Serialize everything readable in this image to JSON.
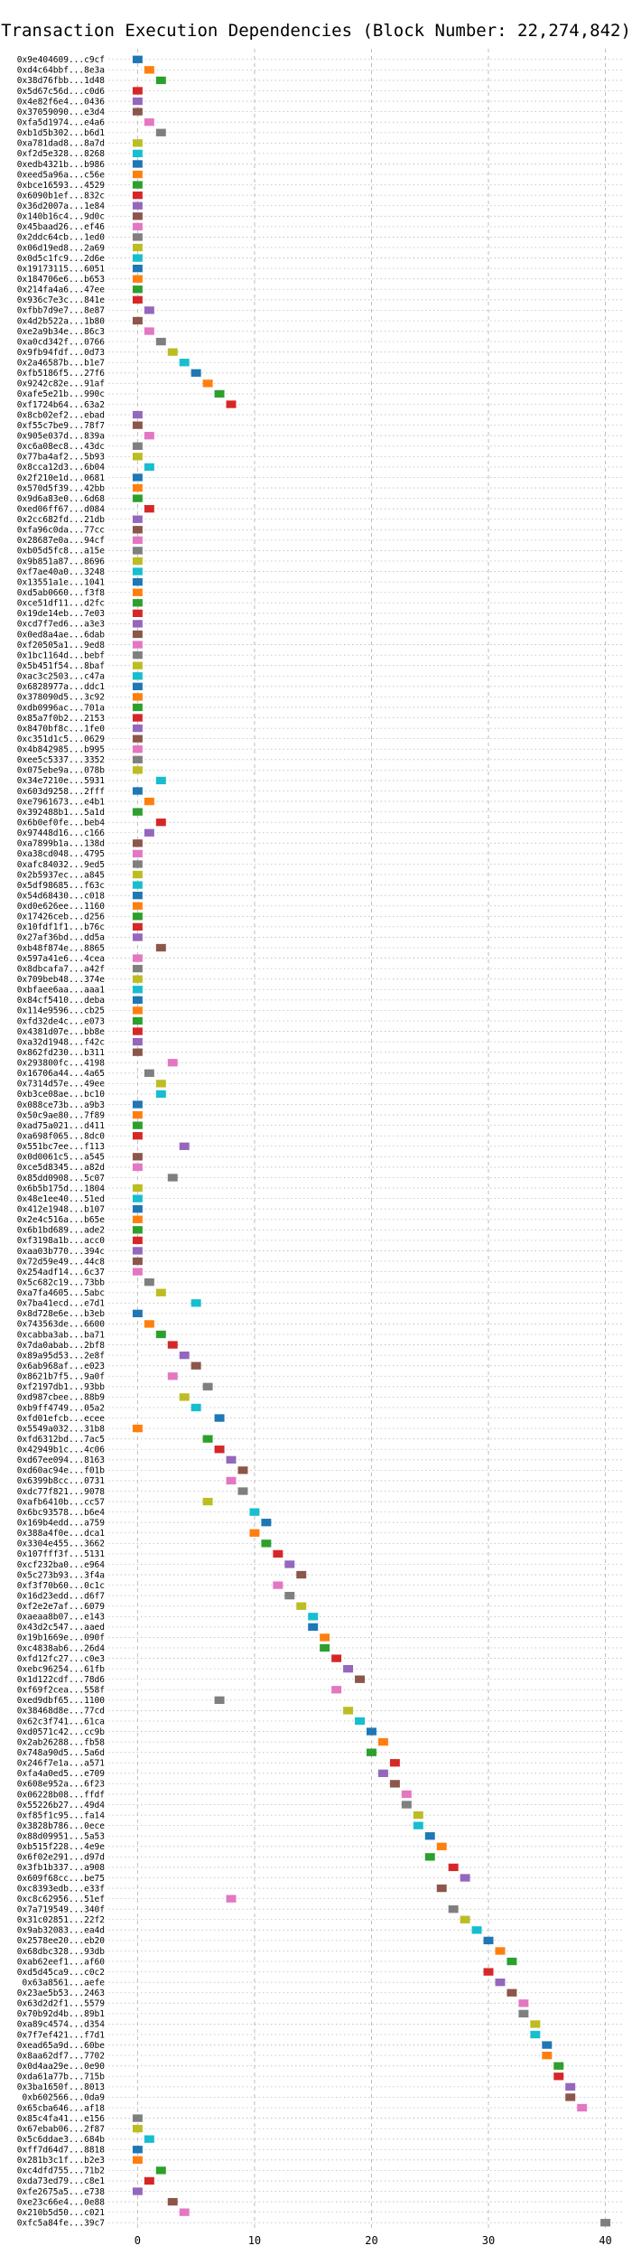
{
  "chart_data": {
    "type": "bar",
    "title": "Transaction Execution Dependencies (Block Number: 22,274,842)",
    "xlabel": "",
    "ylabel": "",
    "xlim": [
      -2.5,
      41.5
    ],
    "xticks": [
      0,
      10,
      20,
      30,
      40
    ],
    "grid": true,
    "colors": [
      "#1f77b4",
      "#ff7f0e",
      "#2ca02c",
      "#d62728",
      "#9467bd",
      "#8c564b",
      "#e377c2",
      "#7f7f7f",
      "#bcbd22",
      "#17becf"
    ],
    "transactions": [
      {
        "label": "0x9e404609...c9cf",
        "start": 0
      },
      {
        "label": "0xd4c64bbf...8e3a",
        "start": 1
      },
      {
        "label": "0x38d76fbb...1d48",
        "start": 2
      },
      {
        "label": "0x5d67c56d...c0d6",
        "start": 0
      },
      {
        "label": "0x4e82f6e4...0436",
        "start": 0
      },
      {
        "label": "0x37059090...e3d4",
        "start": 0
      },
      {
        "label": "0xfa5d1974...e4a6",
        "start": 1
      },
      {
        "label": "0xb1d5b302...b6d1",
        "start": 2
      },
      {
        "label": "0xa781dad8...8a7d",
        "start": 0
      },
      {
        "label": "0xf2d5e328...8268",
        "start": 0
      },
      {
        "label": "0xedb4321b...b986",
        "start": 0
      },
      {
        "label": "0xeed5a96a...c56e",
        "start": 0
      },
      {
        "label": "0xbce16593...4529",
        "start": 0
      },
      {
        "label": "0x6090b1ef...832c",
        "start": 0
      },
      {
        "label": "0x36d2007a...1e84",
        "start": 0
      },
      {
        "label": "0x140b16c4...9d0c",
        "start": 0
      },
      {
        "label": "0x45baad26...ef46",
        "start": 0
      },
      {
        "label": "0x2ddc64cb...1ed0",
        "start": 0
      },
      {
        "label": "0x06d19ed8...2a69",
        "start": 0
      },
      {
        "label": "0x0d5c1fc9...2d6e",
        "start": 0
      },
      {
        "label": "0x19173115...6051",
        "start": 0
      },
      {
        "label": "0x184706e6...b653",
        "start": 0
      },
      {
        "label": "0x214fa4a6...47ee",
        "start": 0
      },
      {
        "label": "0x936c7e3c...841e",
        "start": 0
      },
      {
        "label": "0xfbb7d9e7...8e87",
        "start": 1
      },
      {
        "label": "0x4d2b522a...1b80",
        "start": 0
      },
      {
        "label": "0xe2a9b34e...86c3",
        "start": 1
      },
      {
        "label": "0xa0cd342f...0766",
        "start": 2
      },
      {
        "label": "0x9fb94fdf...0d73",
        "start": 3
      },
      {
        "label": "0x2a46587b...b1e7",
        "start": 4
      },
      {
        "label": "0xfb5186f5...27f6",
        "start": 5
      },
      {
        "label": "0x9242c82e...91af",
        "start": 6
      },
      {
        "label": "0xafe5e21b...990c",
        "start": 7
      },
      {
        "label": "0xf1724b64...63a2",
        "start": 8
      },
      {
        "label": "0x8cb02ef2...ebad",
        "start": 0
      },
      {
        "label": "0xf55c7be9...78f7",
        "start": 0
      },
      {
        "label": "0x905e037d...839a",
        "start": 1
      },
      {
        "label": "0xc6a08ec8...43dc",
        "start": 0
      },
      {
        "label": "0x77ba4af2...5b93",
        "start": 0
      },
      {
        "label": "0x8cca12d3...6b04",
        "start": 1
      },
      {
        "label": "0x2f210e1d...0681",
        "start": 0
      },
      {
        "label": "0x570d5f39...42bb",
        "start": 0
      },
      {
        "label": "0x9d6a83e0...6d68",
        "start": 0
      },
      {
        "label": "0xed06ff67...d084",
        "start": 1
      },
      {
        "label": "0x2cc682fd...21db",
        "start": 0
      },
      {
        "label": "0xfa96c0da...77cc",
        "start": 0
      },
      {
        "label": "0x28687e0a...94cf",
        "start": 0
      },
      {
        "label": "0xb05d5fc8...a15e",
        "start": 0
      },
      {
        "label": "0x9b851a87...8696",
        "start": 0
      },
      {
        "label": "0xf7ae40a0...3248",
        "start": 0
      },
      {
        "label": "0x13551a1e...1041",
        "start": 0
      },
      {
        "label": "0xd5ab0660...f3f8",
        "start": 0
      },
      {
        "label": "0xce51df11...d2fc",
        "start": 0
      },
      {
        "label": "0x19de14eb...7e03",
        "start": 0
      },
      {
        "label": "0xcd7f7ed6...a3e3",
        "start": 0
      },
      {
        "label": "0x0ed8a4ae...6dab",
        "start": 0
      },
      {
        "label": "0xf20505a1...9ed8",
        "start": 0
      },
      {
        "label": "0x1bc1164d...bebf",
        "start": 0
      },
      {
        "label": "0x5b451f54...8baf",
        "start": 0
      },
      {
        "label": "0xac3c2503...c47a",
        "start": 0
      },
      {
        "label": "0x6828977a...ddc1",
        "start": 0
      },
      {
        "label": "0x378090d5...3c92",
        "start": 0
      },
      {
        "label": "0xdb0996ac...701a",
        "start": 0
      },
      {
        "label": "0x85a7f0b2...2153",
        "start": 0
      },
      {
        "label": "0x8470bf8c...1fe0",
        "start": 0
      },
      {
        "label": "0xc351d1c5...0629",
        "start": 0
      },
      {
        "label": "0x4b842985...b995",
        "start": 0
      },
      {
        "label": "0xee5c5337...3352",
        "start": 0
      },
      {
        "label": "0x075ebe9a...078b",
        "start": 0
      },
      {
        "label": "0x34e7210e...5931",
        "start": 2
      },
      {
        "label": "0x603d9258...2fff",
        "start": 0
      },
      {
        "label": "0xe7961673...e4b1",
        "start": 1
      },
      {
        "label": "0x392488b1...5a1d",
        "start": 0
      },
      {
        "label": "0x6b0ef0fe...beb4",
        "start": 2
      },
      {
        "label": "0x97448d16...c166",
        "start": 1
      },
      {
        "label": "0xa7899b1a...138d",
        "start": 0
      },
      {
        "label": "0xa38cd048...4795",
        "start": 0
      },
      {
        "label": "0xafc84032...9ed5",
        "start": 0
      },
      {
        "label": "0x2b5937ec...a845",
        "start": 0
      },
      {
        "label": "0x5df98685...f63c",
        "start": 0
      },
      {
        "label": "0x54d68430...c018",
        "start": 0
      },
      {
        "label": "0xd0e626ee...1160",
        "start": 0
      },
      {
        "label": "0x17426ceb...d256",
        "start": 0
      },
      {
        "label": "0x10fdf1f1...b76c",
        "start": 0
      },
      {
        "label": "0x27af36bd...dd5a",
        "start": 0
      },
      {
        "label": "0xb48f874e...8865",
        "start": 2
      },
      {
        "label": "0x597a41e6...4cea",
        "start": 0
      },
      {
        "label": "0x8dbcafa7...a42f",
        "start": 0
      },
      {
        "label": "0x709beb48...374e",
        "start": 0
      },
      {
        "label": "0xbfaee6aa...aaa1",
        "start": 0
      },
      {
        "label": "0x84cf5410...deba",
        "start": 0
      },
      {
        "label": "0x114e9596...cb25",
        "start": 0
      },
      {
        "label": "0xfd32de4c...e073",
        "start": 0
      },
      {
        "label": "0x4381d07e...bb8e",
        "start": 0
      },
      {
        "label": "0xa32d1948...f42c",
        "start": 0
      },
      {
        "label": "0x862fd230...b311",
        "start": 0
      },
      {
        "label": "0x293800fc...4198",
        "start": 3
      },
      {
        "label": "0x16706a44...4a65",
        "start": 1
      },
      {
        "label": "0x7314d57e...49ee",
        "start": 2
      },
      {
        "label": "0xb3ce08ae...bc10",
        "start": 2
      },
      {
        "label": "0x088ce73b...a9b3",
        "start": 0
      },
      {
        "label": "0x50c9ae80...7f89",
        "start": 0
      },
      {
        "label": "0xad75a021...d411",
        "start": 0
      },
      {
        "label": "0xa698f065...8dc0",
        "start": 0
      },
      {
        "label": "0x551bc7ee...f113",
        "start": 4
      },
      {
        "label": "0x0d0061c5...a545",
        "start": 0
      },
      {
        "label": "0xce5d8345...a82d",
        "start": 0
      },
      {
        "label": "0x85dd0908...5c07",
        "start": 3
      },
      {
        "label": "0x6b5b175d...1804",
        "start": 0
      },
      {
        "label": "0x48e1ee40...51ed",
        "start": 0
      },
      {
        "label": "0x412e1948...b107",
        "start": 0
      },
      {
        "label": "0x2e4c516a...b65e",
        "start": 0
      },
      {
        "label": "0x6b1bd689...ade2",
        "start": 0
      },
      {
        "label": "0xf3198a1b...acc0",
        "start": 0
      },
      {
        "label": "0xaa03b770...394c",
        "start": 0
      },
      {
        "label": "0x72d59e49...44c8",
        "start": 0
      },
      {
        "label": "0x254adf14...6c37",
        "start": 0
      },
      {
        "label": "0x5c682c19...73bb",
        "start": 1
      },
      {
        "label": "0xa7fa4605...5abc",
        "start": 2
      },
      {
        "label": "0x7ba41ecd...e7d1",
        "start": 5
      },
      {
        "label": "0x8d728e6e...b3eb",
        "start": 0
      },
      {
        "label": "0x743563de...6600",
        "start": 1
      },
      {
        "label": "0xcabba3ab...ba71",
        "start": 2
      },
      {
        "label": "0x7da0abab...2bf8",
        "start": 3
      },
      {
        "label": "0x89a95d53...2e8f",
        "start": 4
      },
      {
        "label": "0x6ab968af...e023",
        "start": 5
      },
      {
        "label": "0x8621b7f5...9a0f",
        "start": 3
      },
      {
        "label": "0xf2197db1...93bb",
        "start": 6
      },
      {
        "label": "0xd987cbee...88b9",
        "start": 4
      },
      {
        "label": "0xb9ff4749...05a2",
        "start": 5
      },
      {
        "label": "0xfd01efcb...ecee",
        "start": 7
      },
      {
        "label": "0x5549a032...31b8",
        "start": 0
      },
      {
        "label": "0xfd6312bd...7ac5",
        "start": 6
      },
      {
        "label": "0x42949b1c...4c06",
        "start": 7
      },
      {
        "label": "0xd67ee094...8163",
        "start": 8
      },
      {
        "label": "0xd60ac94e...f01b",
        "start": 9
      },
      {
        "label": "0x6399b8cc...0731",
        "start": 8
      },
      {
        "label": "0xdc77f821...9078",
        "start": 9
      },
      {
        "label": "0xafb6410b...cc57",
        "start": 6
      },
      {
        "label": "0x6bc93578...b6e4",
        "start": 10
      },
      {
        "label": "0x169b4edd...a759",
        "start": 11
      },
      {
        "label": "0x388a4f0e...dca1",
        "start": 10
      },
      {
        "label": "0x3304e455...3662",
        "start": 11
      },
      {
        "label": "0x107fff3f...5131",
        "start": 12
      },
      {
        "label": "0xcf232ba0...e964",
        "start": 13
      },
      {
        "label": "0x5c273b93...3f4a",
        "start": 14
      },
      {
        "label": "0xf3f70b60...0c1c",
        "start": 12
      },
      {
        "label": "0x16d23edd...d6f7",
        "start": 13
      },
      {
        "label": "0xf2e2e7af...6079",
        "start": 14
      },
      {
        "label": "0xaeaa8b07...e143",
        "start": 15
      },
      {
        "label": "0x43d2c547...aaed",
        "start": 15
      },
      {
        "label": "0x19b1669e...090f",
        "start": 16
      },
      {
        "label": "0xc4838ab6...26d4",
        "start": 16
      },
      {
        "label": "0xfd12fc27...c0e3",
        "start": 17
      },
      {
        "label": "0xebc96254...61fb",
        "start": 18
      },
      {
        "label": "0x1d122cdf...78d6",
        "start": 19
      },
      {
        "label": "0xf69f2cea...558f",
        "start": 17
      },
      {
        "label": "0xed9dbf65...1100",
        "start": 7
      },
      {
        "label": "0x38468d8e...77cd",
        "start": 18
      },
      {
        "label": "0x62c3f741...61ca",
        "start": 19
      },
      {
        "label": "0xd0571c42...cc9b",
        "start": 20
      },
      {
        "label": "0x2ab26288...fb58",
        "start": 21
      },
      {
        "label": "0x748a90d5...5a6d",
        "start": 20
      },
      {
        "label": "0x246f7e1a...a571",
        "start": 22
      },
      {
        "label": "0xfa4a0ed5...e709",
        "start": 21
      },
      {
        "label": "0x608e952a...6f23",
        "start": 22
      },
      {
        "label": "0x06228b08...ffdf",
        "start": 23
      },
      {
        "label": "0x55226b27...49d4",
        "start": 23
      },
      {
        "label": "0xf85f1c95...fa14",
        "start": 24
      },
      {
        "label": "0x3828b786...0ece",
        "start": 24
      },
      {
        "label": "0x88d09951...5a53",
        "start": 25
      },
      {
        "label": "0xb515f228...4e9e",
        "start": 26
      },
      {
        "label": "0x6f02e291...d97d",
        "start": 25
      },
      {
        "label": "0x3fb1b337...a908",
        "start": 27
      },
      {
        "label": "0x609f68cc...be75",
        "start": 28
      },
      {
        "label": "0xc8393edb...e33f",
        "start": 26
      },
      {
        "label": "0xc8c62956...51ef",
        "start": 8
      },
      {
        "label": "0x7a719549...340f",
        "start": 27
      },
      {
        "label": "0x31c02851...22f2",
        "start": 28
      },
      {
        "label": "0x9ab32083...ea4d",
        "start": 29
      },
      {
        "label": "0x2578ee20...eb20",
        "start": 30
      },
      {
        "label": "0x68dbc328...93db",
        "start": 31
      },
      {
        "label": "0xab62eef1...af60",
        "start": 32
      },
      {
        "label": "0xd5d45ca9...c0c2",
        "start": 30
      },
      {
        "label": "0x63a8561...aefe",
        "start": 31
      },
      {
        "label": "0x23ae5b53...2463",
        "start": 32
      },
      {
        "label": "0x63d2d2f1...5579",
        "start": 33
      },
      {
        "label": "0x70b92d4b...89b1",
        "start": 33
      },
      {
        "label": "0xa89c4574...d354",
        "start": 34
      },
      {
        "label": "0x7f7ef421...f7d1",
        "start": 34
      },
      {
        "label": "0xead65a9d...60be",
        "start": 35
      },
      {
        "label": "0x8aa62df7...7702",
        "start": 35
      },
      {
        "label": "0x0d4aa29e...0e90",
        "start": 36
      },
      {
        "label": "0xda61a77b...715b",
        "start": 36
      },
      {
        "label": "0x3ba1650f...8013",
        "start": 37
      },
      {
        "label": "0xb602566...0da9",
        "start": 37
      },
      {
        "label": "0x65cba646...af18",
        "start": 38
      },
      {
        "label": "0x85c4fa41...e156",
        "start": 0
      },
      {
        "label": "0x67ebab06...2f87",
        "start": 0
      },
      {
        "label": "0x5c6ddae3...684b",
        "start": 1
      },
      {
        "label": "0xff7d64d7...8818",
        "start": 0
      },
      {
        "label": "0x281b3c1f...b2e3",
        "start": 0
      },
      {
        "label": "0xc4dfd755...71b2",
        "start": 2
      },
      {
        "label": "0xda73ed79...c8e1",
        "start": 1
      },
      {
        "label": "0xfe2675a5...e738",
        "start": 0
      },
      {
        "label": "0xe23c66e4...0e88",
        "start": 3
      },
      {
        "label": "0x210b5d50...c021",
        "start": 4
      },
      {
        "label": "0xfc5a84fe...39c7",
        "start": 40
      }
    ]
  }
}
